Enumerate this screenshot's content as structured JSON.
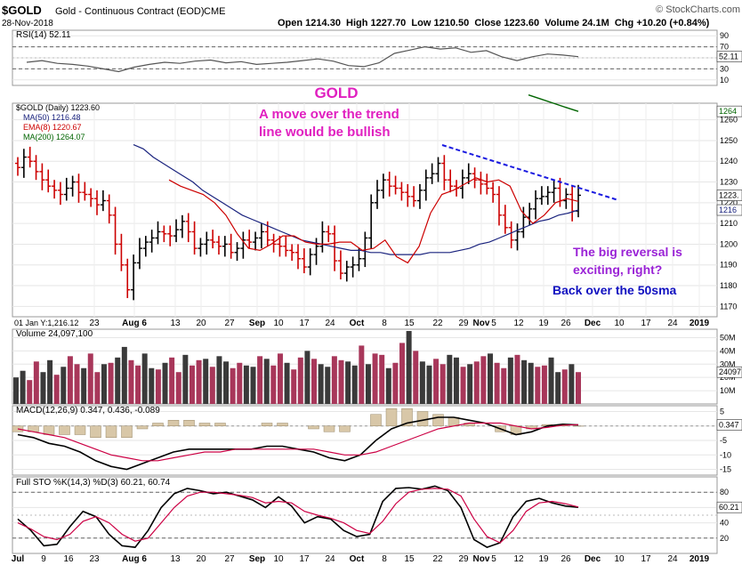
{
  "header": {
    "symbol": "$GOLD",
    "name": "Gold - Continuous Contract (EOD)",
    "exchange": "CME",
    "date": "28-Nov-2018",
    "brand": "© StockCharts.com",
    "ohlc_line": "Open 1214.30  High 1227.70  Low 1210.50  Close 1223.60  Volume 24.1M  Chg +10.20 (+0.84%)"
  },
  "panels": {
    "rsi": {
      "label": "RSI(14) 52.11",
      "ticks": [
        "90",
        "70",
        "50",
        "30",
        "10"
      ],
      "value_tag": "52.11",
      "levels": [
        70,
        30
      ]
    },
    "price": {
      "legend": [
        "$GOLD (Daily) 1223.60",
        "MA(50) 1216.48",
        "EMA(8) 1220.67",
        "MA(200) 1264.07"
      ],
      "ticks": [
        "1260",
        "1250",
        "1240",
        "1230",
        "1220",
        "1210",
        "1200",
        "1190",
        "1180",
        "1170"
      ],
      "tags": [
        "1264",
        "1223.",
        "1216"
      ],
      "bottom_label": "01 Jan Y:1,216.12"
    },
    "volume": {
      "label": "Volume 24,097,100",
      "ticks": [
        "50M",
        "40M",
        "30M",
        "20M",
        "10M"
      ],
      "value_tag": "24097"
    },
    "macd": {
      "label": "MACD(12,26,9) 0.347, 0.436, -0.089",
      "ticks": [
        "5",
        "0",
        "-5",
        "-10",
        "-15"
      ],
      "value_tag": "0.347"
    },
    "sto": {
      "label": "Full STO %K(14,3) %D(3) 60.21, 60.74",
      "ticks": [
        "80",
        "60",
        "40",
        "20"
      ],
      "value_tag": "60.21"
    }
  },
  "x_axis_top": [
    "23",
    "Aug 6",
    "13",
    "20",
    "27",
    "Sep",
    "10",
    "17",
    "24",
    "Oct",
    "8",
    "15",
    "22",
    "29",
    "Nov",
    "5",
    "12",
    "19",
    "26",
    "Dec",
    "10",
    "17",
    "24",
    "2019"
  ],
  "x_axis_bottom": [
    "Jul",
    "9",
    "16",
    "23",
    "Aug 6",
    "13",
    "20",
    "27",
    "Sep",
    "10",
    "17",
    "24",
    "Oct",
    "8",
    "15",
    "22",
    "29",
    "Nov",
    "5",
    "12",
    "19",
    "26",
    "Dec",
    "10",
    "17",
    "24",
    "2019"
  ],
  "annotations": {
    "title": "GOLD",
    "trend_line1": "A move over the trend",
    "trend_line2": "line would be bullish",
    "reversal_line1": "The big reversal is",
    "reversal_line2": "exciting, right?",
    "sma_note": "Back over the 50sma"
  },
  "colors": {
    "price_bar_up": "#000000",
    "price_bar_down": "#cc0000",
    "ma50": "#1a237e",
    "ema8": "#cc0000",
    "ma200": "#006400",
    "volume_up": "#3a3a3a",
    "volume_down": "#a8375a",
    "annotation_magenta": "#e020c0",
    "annotation_purple": "#9a22d6",
    "annotation_blue": "#1010c0",
    "trendline": "#1a1ae0"
  },
  "chart_data": [
    {
      "type": "ohlc",
      "title": "$GOLD (Daily)",
      "ylim": [
        1165,
        1268
      ],
      "series": [
        {
          "name": "$GOLD (Daily)",
          "values": [
            1237,
            1242,
            1240,
            1235,
            1231,
            1228,
            1226,
            1224,
            1227,
            1230,
            1225,
            1224,
            1222,
            1219,
            1221,
            1214,
            1200,
            1190,
            1178,
            1191,
            1198,
            1201,
            1203,
            1206,
            1205,
            1204,
            1207,
            1211,
            1206,
            1198,
            1200,
            1202,
            1201,
            1199,
            1200,
            1196,
            1198,
            1202,
            1201,
            1203,
            1206,
            1202,
            1200,
            1199,
            1197,
            1196,
            1193,
            1189,
            1195,
            1199,
            1206,
            1205,
            1192,
            1186,
            1189,
            1190,
            1193,
            1203,
            1220,
            1226,
            1231,
            1228,
            1227,
            1225,
            1223,
            1221,
            1226,
            1232,
            1234,
            1239,
            1231,
            1228,
            1227,
            1232,
            1234,
            1231,
            1229,
            1227,
            1224,
            1214,
            1208,
            1202,
            1206,
            1213,
            1217,
            1222,
            1223,
            1225,
            1227,
            1221,
            1224,
            1216,
            1223.6
          ]
        },
        {
          "name": "MA(50)",
          "values": [
            1248,
            1246,
            1242,
            1239,
            1236,
            1233,
            1230,
            1226,
            1223,
            1220,
            1217,
            1214,
            1212,
            1210,
            1208,
            1206,
            1204,
            1202,
            1201,
            1200,
            1199,
            1198,
            1197,
            1197,
            1196,
            1196,
            1195,
            1195,
            1195,
            1195,
            1196,
            1196,
            1196,
            1197,
            1198,
            1200,
            1201,
            1203,
            1205,
            1207,
            1209,
            1211,
            1212,
            1214,
            1215,
            1216.48
          ]
        },
        {
          "name": "EMA(8)",
          "values": [
            1231,
            1228,
            1226,
            1224,
            1220,
            1214,
            1205,
            1198,
            1197,
            1200,
            1204,
            1204,
            1201,
            1200,
            1200,
            1201,
            1201,
            1197,
            1198,
            1202,
            1194,
            1191,
            1199,
            1215,
            1224,
            1226,
            1229,
            1232,
            1230,
            1231,
            1228,
            1216,
            1210,
            1214,
            1220,
            1222,
            1220.67
          ]
        },
        {
          "name": "MA(200)",
          "values": [
            1272,
            1270,
            1268,
            1266,
            1264.07
          ]
        }
      ]
    },
    {
      "type": "line",
      "title": "RSI(14)",
      "ylim": [
        0,
        100
      ],
      "series": [
        {
          "name": "RSI(14)",
          "values": [
            42,
            45,
            40,
            38,
            35,
            30,
            25,
            33,
            38,
            42,
            40,
            44,
            46,
            41,
            43,
            38,
            40,
            42,
            45,
            48,
            44,
            36,
            34,
            41,
            58,
            64,
            70,
            66,
            68,
            60,
            63,
            52,
            45,
            52,
            57,
            55,
            52.11
          ]
        }
      ]
    },
    {
      "type": "bar",
      "title": "Volume",
      "ylim": [
        0,
        55
      ],
      "series": [
        {
          "name": "Volume",
          "values": [
            20,
            25,
            18,
            32,
            24,
            33,
            22,
            28,
            36,
            30,
            27,
            38,
            24,
            30,
            31,
            35,
            43,
            33,
            29,
            38,
            27,
            26,
            31,
            35,
            24,
            37,
            29,
            33,
            34,
            28,
            36,
            32,
            27,
            31,
            29,
            28,
            36,
            34,
            29,
            38,
            31,
            26,
            35,
            40,
            34,
            30,
            28,
            36,
            33,
            32,
            29,
            44,
            30,
            38,
            37,
            27,
            31,
            46,
            55,
            40,
            32,
            29,
            34,
            30,
            37,
            35,
            28,
            30,
            32,
            36,
            38,
            31,
            27,
            35,
            37,
            33,
            31,
            28,
            29,
            35,
            24,
            26,
            30,
            24
          ]
        }
      ]
    },
    {
      "type": "line",
      "title": "MACD(12,26,9)",
      "ylim": [
        -17,
        7
      ],
      "series": [
        {
          "name": "MACD",
          "values": [
            -3,
            -4,
            -6,
            -7,
            -9,
            -12,
            -14,
            -15,
            -13,
            -11,
            -9,
            -8,
            -8,
            -8,
            -8,
            -8,
            -7,
            -7,
            -8,
            -9,
            -11,
            -12,
            -10,
            -5,
            -1,
            1,
            2,
            3,
            3,
            2,
            1,
            -1,
            -3,
            -2,
            0,
            0.6,
            0.347
          ]
        },
        {
          "name": "Signal",
          "values": [
            -1,
            -2,
            -3,
            -4,
            -6,
            -8,
            -10,
            -11,
            -12,
            -12,
            -11,
            -10,
            -9,
            -9,
            -8,
            -8,
            -8,
            -8,
            -8,
            -8,
            -9,
            -10,
            -10,
            -9,
            -7,
            -5,
            -3,
            -1,
            0,
            1,
            1,
            1,
            0,
            -1,
            -0.5,
            0.3,
            0.436
          ]
        }
      ]
    },
    {
      "type": "line",
      "title": "Full STO %K(14,3) %D(3)",
      "ylim": [
        0,
        100
      ],
      "series": [
        {
          "name": "%K",
          "values": [
            45,
            30,
            10,
            12,
            35,
            55,
            48,
            25,
            10,
            8,
            30,
            60,
            78,
            85,
            82,
            78,
            80,
            75,
            70,
            60,
            74,
            62,
            40,
            48,
            45,
            30,
            22,
            25,
            68,
            85,
            86,
            84,
            88,
            82,
            60,
            18,
            8,
            14,
            48,
            68,
            72,
            66,
            62,
            60.21
          ]
        },
        {
          "name": "%D",
          "values": [
            40,
            32,
            22,
            18,
            25,
            42,
            48,
            40,
            25,
            16,
            20,
            40,
            60,
            75,
            80,
            80,
            78,
            76,
            73,
            66,
            68,
            66,
            55,
            50,
            46,
            40,
            30,
            26,
            42,
            65,
            80,
            84,
            85,
            84,
            75,
            45,
            22,
            14,
            30,
            55,
            66,
            68,
            65,
            60.74
          ]
        }
      ]
    }
  ]
}
